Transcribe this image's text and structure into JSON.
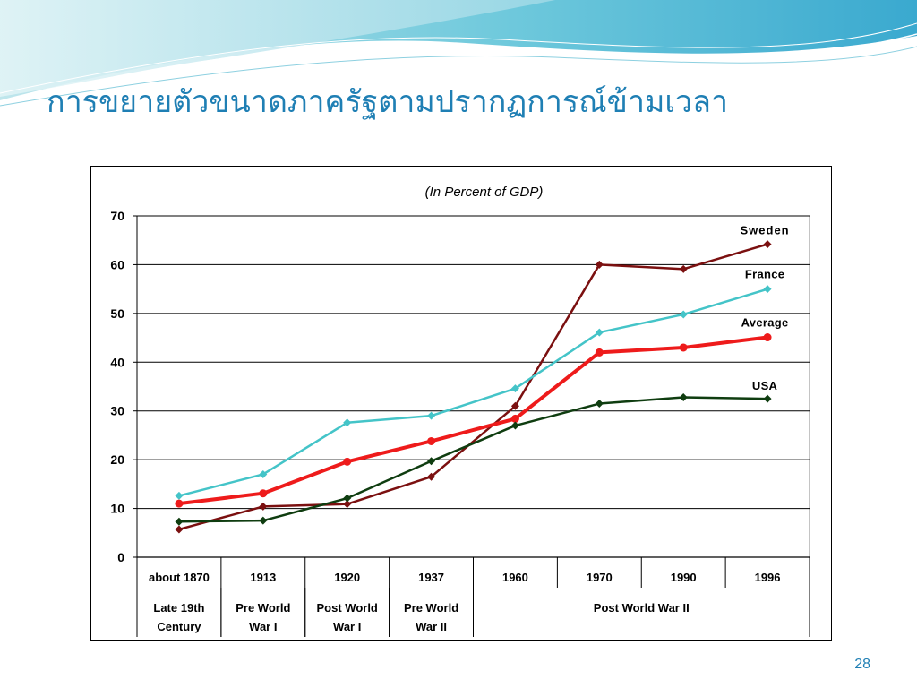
{
  "slide": {
    "title": "การขยายตัวขนาดภาครัฐตามปรากฏการณ์ข้ามเวลา",
    "page_number": "28",
    "accent_color": "#1f7fb4"
  },
  "chart_data": {
    "type": "line",
    "title": "(In Percent of GDP)",
    "xlabel": "",
    "ylabel": "",
    "ylim": [
      0,
      70
    ],
    "yticks": [
      0,
      10,
      20,
      30,
      40,
      50,
      60,
      70
    ],
    "grid": true,
    "categories": [
      "about 1870",
      "1913",
      "1920",
      "1937",
      "1960",
      "1970",
      "1990",
      "1996"
    ],
    "category_groups": [
      {
        "label": [
          "Late 19th",
          "Century"
        ],
        "span": 1
      },
      {
        "label": [
          "Pre World",
          "War I"
        ],
        "span": 1
      },
      {
        "label": [
          "Post World",
          "War I"
        ],
        "span": 1
      },
      {
        "label": [
          "Pre World",
          "War II"
        ],
        "span": 1
      },
      {
        "label": [
          "Post World War II"
        ],
        "span": 4
      }
    ],
    "series": [
      {
        "name": "Sweden",
        "color": "#7b1010",
        "marker": "diamond",
        "values": [
          5.7,
          10.4,
          10.9,
          16.5,
          31.0,
          60.0,
          59.1,
          64.2
        ]
      },
      {
        "name": "France",
        "color": "#44c4c8",
        "marker": "diamond",
        "values": [
          12.6,
          17.0,
          27.6,
          29.0,
          34.6,
          46.1,
          49.8,
          55.0
        ]
      },
      {
        "name": "Average",
        "color": "#ee1b1b",
        "marker": "circle",
        "values": [
          11.0,
          13.1,
          19.6,
          23.8,
          28.4,
          42.0,
          43.0,
          45.1
        ]
      },
      {
        "name": "USA",
        "color": "#0f3d10",
        "marker": "diamond",
        "values": [
          7.3,
          7.5,
          12.1,
          19.7,
          27.0,
          31.5,
          32.8,
          32.5
        ]
      }
    ]
  }
}
